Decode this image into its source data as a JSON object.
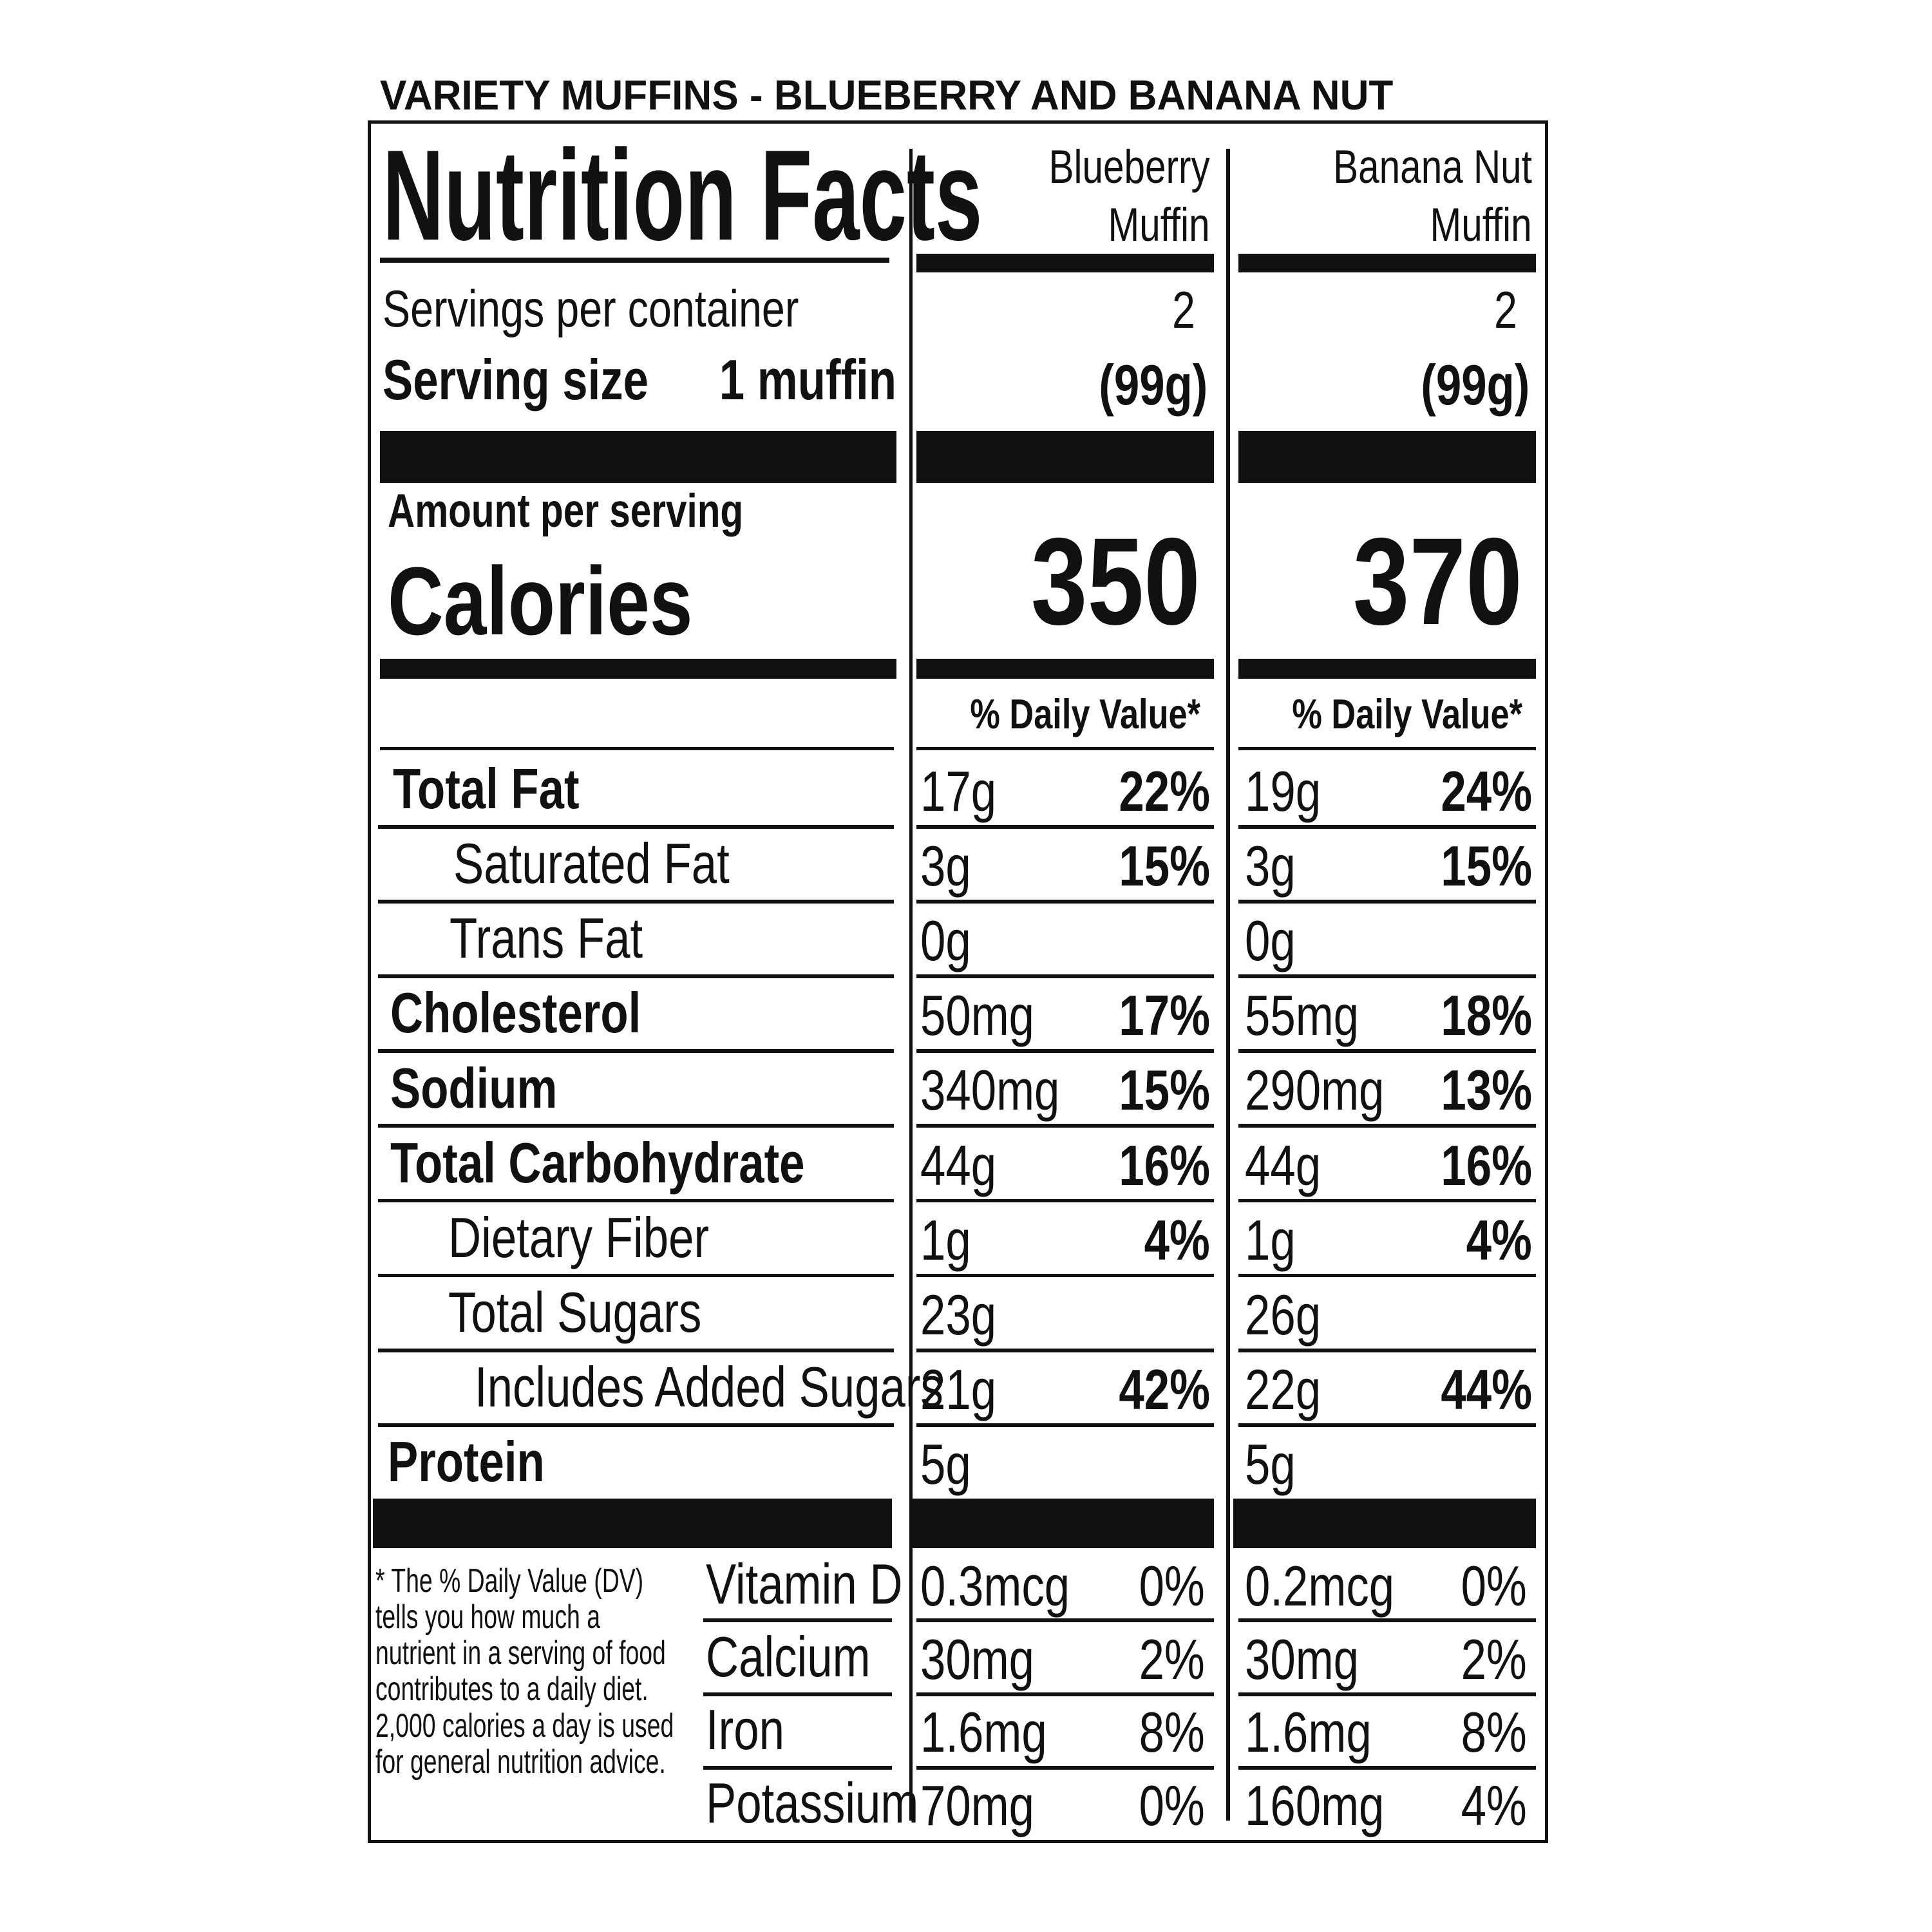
{
  "header": {
    "title": "VARIETY MUFFINS - BLUEBERRY AND BANANA NUT"
  },
  "label": {
    "heading": "Nutrition Facts",
    "columns": [
      [
        "Blueberry",
        "Muffin"
      ],
      [
        "Banana Nut",
        "Muffin"
      ]
    ],
    "servings_per_container": {
      "label": "Servings per container",
      "values": [
        "2",
        "2"
      ]
    },
    "serving_size": {
      "label": "Serving size",
      "amount": "1 muffin",
      "values": [
        "(99g)",
        "(99g)"
      ]
    },
    "amount_per_serving": "Amount per serving",
    "calories": {
      "label": "Calories",
      "values": [
        "350",
        "370"
      ]
    },
    "daily_value_header": "% Daily Value*",
    "nutrients": [
      {
        "name": "Total Fat",
        "values": [
          {
            "amount": "17g",
            "dv": "22%"
          },
          {
            "amount": "19g",
            "dv": "24%"
          }
        ]
      },
      {
        "name": "Saturated Fat",
        "values": [
          {
            "amount": "3g",
            "dv": "15%"
          },
          {
            "amount": "3g",
            "dv": "15%"
          }
        ]
      },
      {
        "name": "Trans Fat",
        "values": [
          {
            "amount": "0g"
          },
          {
            "amount": "0g"
          }
        ]
      },
      {
        "name": "Cholesterol",
        "values": [
          {
            "amount": "50mg",
            "dv": "17%"
          },
          {
            "amount": "55mg",
            "dv": "18%"
          }
        ]
      },
      {
        "name": "Sodium",
        "values": [
          {
            "amount": "340mg",
            "dv": "15%"
          },
          {
            "amount": "290mg",
            "dv": "13%"
          }
        ]
      },
      {
        "name": "Total Carbohydrate",
        "values": [
          {
            "amount": "44g",
            "dv": "16%"
          },
          {
            "amount": "44g",
            "dv": "16%"
          }
        ]
      },
      {
        "name": "Dietary Fiber",
        "values": [
          {
            "amount": "1g",
            "dv": "4%"
          },
          {
            "amount": "1g",
            "dv": "4%"
          }
        ]
      },
      {
        "name": "Total Sugars",
        "values": [
          {
            "amount": "23g"
          },
          {
            "amount": "26g"
          }
        ]
      },
      {
        "name": "Includes Added Sugars",
        "values": [
          {
            "amount": "21g",
            "dv": "42%"
          },
          {
            "amount": "22g",
            "dv": "44%"
          }
        ]
      },
      {
        "name": "Protein",
        "values": [
          {
            "amount": "5g"
          },
          {
            "amount": "5g"
          }
        ]
      }
    ],
    "footnote": "* The % Daily Value (DV) tells you how much a nutrient in a serving of food contributes to a daily diet. 2,000 calories a day is used for general nutrition advice.",
    "vitamins": [
      {
        "name": "Vitamin D",
        "values": [
          {
            "amount": "0.3mcg",
            "dv": "0%"
          },
          {
            "amount": "0.2mcg",
            "dv": "0%"
          }
        ]
      },
      {
        "name": "Calcium",
        "values": [
          {
            "amount": "30mg",
            "dv": "2%"
          },
          {
            "amount": "30mg",
            "dv": "2%"
          }
        ]
      },
      {
        "name": "Iron",
        "values": [
          {
            "amount": "1.6mg",
            "dv": "8%"
          },
          {
            "amount": "1.6mg",
            "dv": "8%"
          }
        ]
      },
      {
        "name": "Potassium",
        "values": [
          {
            "amount": "70mg",
            "dv": "0%"
          },
          {
            "amount": "160mg",
            "dv": "4%"
          }
        ]
      }
    ]
  }
}
